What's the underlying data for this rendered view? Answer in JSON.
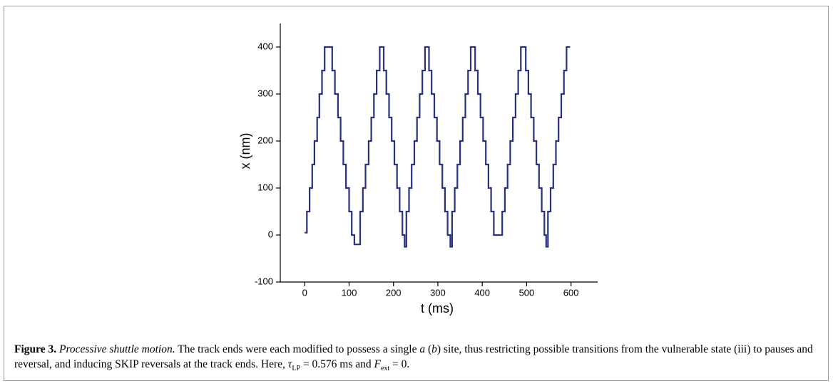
{
  "chart_data": {
    "type": "line",
    "xlabel": "t (ms)",
    "ylabel": "x (nm)",
    "xlim": [
      -55,
      660
    ],
    "ylim": [
      -100,
      450
    ],
    "xticks": [
      0,
      100,
      200,
      300,
      400,
      500,
      600
    ],
    "yticks": [
      -100,
      0,
      100,
      200,
      300,
      400
    ],
    "color": "#28307f",
    "x": [
      0,
      5,
      5,
      11,
      11,
      17,
      17,
      22,
      22,
      28,
      28,
      33,
      33,
      39,
      39,
      45,
      45,
      62,
      62,
      68,
      68,
      75,
      75,
      81,
      81,
      87,
      87,
      93,
      93,
      100,
      100,
      106,
      106,
      112,
      112,
      125,
      125,
      131,
      131,
      137,
      137,
      144,
      144,
      150,
      150,
      156,
      156,
      162,
      162,
      169,
      169,
      178,
      178,
      184,
      184,
      190,
      190,
      196,
      196,
      202,
      202,
      208,
      208,
      214,
      214,
      220,
      220,
      225,
      225,
      229,
      229,
      235,
      235,
      241,
      241,
      247,
      247,
      253,
      253,
      259,
      259,
      265,
      265,
      271,
      271,
      280,
      280,
      286,
      286,
      292,
      292,
      298,
      298,
      304,
      304,
      310,
      310,
      316,
      316,
      322,
      322,
      328,
      328,
      332,
      332,
      338,
      338,
      344,
      344,
      350,
      350,
      356,
      356,
      362,
      362,
      368,
      368,
      374,
      374,
      384,
      384,
      390,
      390,
      396,
      396,
      402,
      402,
      408,
      408,
      414,
      414,
      420,
      420,
      426,
      426,
      445,
      445,
      451,
      451,
      457,
      457,
      463,
      463,
      469,
      469,
      475,
      475,
      481,
      481,
      487,
      487,
      498,
      498,
      504,
      504,
      510,
      510,
      516,
      516,
      522,
      522,
      528,
      528,
      534,
      534,
      540,
      540,
      544,
      544,
      548,
      548,
      554,
      554,
      560,
      560,
      566,
      566,
      572,
      572,
      578,
      578,
      584,
      584,
      590,
      590,
      598
    ],
    "values": [
      5,
      5,
      50,
      50,
      100,
      100,
      150,
      150,
      200,
      200,
      250,
      250,
      300,
      300,
      350,
      350,
      400,
      400,
      350,
      350,
      300,
      300,
      250,
      250,
      200,
      200,
      150,
      150,
      100,
      100,
      50,
      50,
      0,
      0,
      -20,
      -20,
      50,
      50,
      100,
      100,
      150,
      150,
      200,
      200,
      250,
      250,
      300,
      300,
      350,
      350,
      400,
      400,
      350,
      350,
      300,
      300,
      250,
      250,
      200,
      200,
      150,
      150,
      100,
      100,
      50,
      50,
      0,
      0,
      -25,
      -25,
      50,
      50,
      100,
      100,
      150,
      150,
      200,
      200,
      250,
      250,
      300,
      300,
      350,
      350,
      400,
      400,
      350,
      350,
      300,
      300,
      250,
      250,
      200,
      200,
      150,
      150,
      100,
      100,
      50,
      50,
      0,
      0,
      -25,
      -25,
      50,
      50,
      100,
      100,
      150,
      150,
      200,
      200,
      250,
      250,
      300,
      300,
      350,
      350,
      400,
      400,
      350,
      350,
      300,
      300,
      250,
      250,
      200,
      200,
      150,
      150,
      100,
      100,
      50,
      50,
      0,
      0,
      50,
      50,
      100,
      100,
      150,
      150,
      200,
      200,
      250,
      250,
      300,
      300,
      350,
      350,
      400,
      400,
      350,
      350,
      300,
      300,
      250,
      250,
      200,
      200,
      150,
      150,
      100,
      100,
      50,
      50,
      0,
      0,
      -25,
      -25,
      50,
      50,
      100,
      100,
      150,
      150,
      200,
      200,
      250,
      250,
      300,
      300,
      350,
      350,
      400,
      400
    ]
  },
  "caption": {
    "label": "Figure 3.",
    "title": "Processive shuttle motion.",
    "parts": [
      " The track ends were each modified to possess a single ",
      "a",
      " (",
      "b",
      ") site, thus restricting possible transitions from the vulnerable state (iii) to pauses and reversal, and inducing SKIP reversals at the track ends. Here, ",
      "τ",
      "LP",
      " = 0.576 ms and ",
      "F",
      "ext",
      " = 0."
    ]
  }
}
